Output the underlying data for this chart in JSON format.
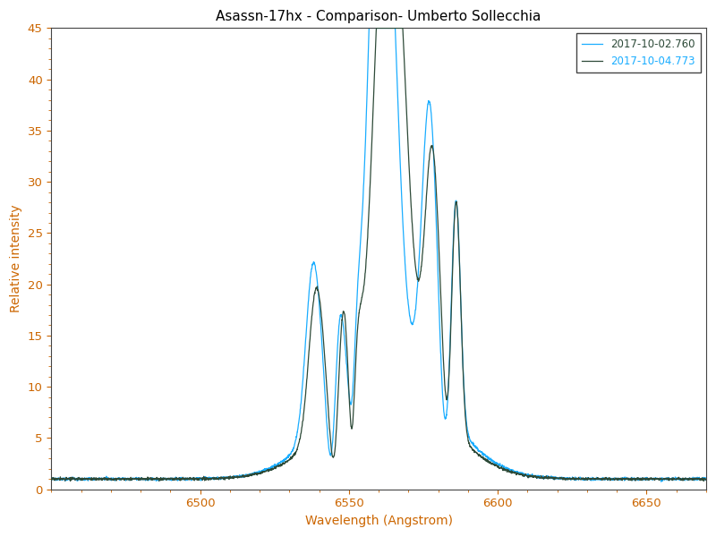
{
  "title": "Asassn-17hx - Comparison- Umberto Sollecchia",
  "xlabel": "Wavelength (Angstrom)",
  "ylabel": "Relative intensity",
  "xlim": [
    6450,
    6670
  ],
  "ylim": [
    0,
    45
  ],
  "yticks": [
    0,
    5,
    10,
    15,
    20,
    25,
    30,
    35,
    40,
    45
  ],
  "xticks": [
    6500,
    6550,
    6600,
    6650
  ],
  "line1_color": "#2d4a38",
  "line2_color": "#1aadff",
  "line1_label": "2017-10-04.773",
  "line2_label": "2017-10-02.760",
  "title_fontsize": 11,
  "label_fontsize": 10,
  "tick_color": "#cc6600",
  "background_color": "#ffffff",
  "legend_loc": "upper right"
}
